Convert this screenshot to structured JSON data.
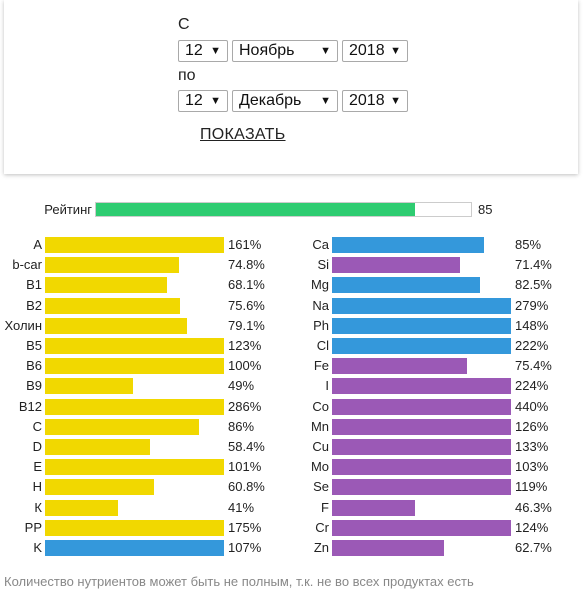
{
  "filter": {
    "from_label": "С",
    "to_label": "по",
    "from": {
      "day": "12",
      "month": "Ноябрь",
      "year": "2018"
    },
    "to": {
      "day": "12",
      "month": "Декабрь",
      "year": "2018"
    },
    "show_label": "ПОКАЗАТЬ",
    "dropdown_arrow": "▼"
  },
  "rating": {
    "label": "Рейтинг",
    "value": 85,
    "value_text": "85",
    "color": "#2ecc71"
  },
  "colors": {
    "vitamin": "#f1d800",
    "blue": "#3498db",
    "purple": "#9b59b6"
  },
  "vitamins": [
    {
      "name": "A",
      "pct": "161%",
      "value": 161,
      "color": "vitamin"
    },
    {
      "name": "b-car",
      "pct": "74.8%",
      "value": 74.8,
      "color": "vitamin"
    },
    {
      "name": "B1",
      "pct": "68.1%",
      "value": 68.1,
      "color": "vitamin"
    },
    {
      "name": "B2",
      "pct": "75.6%",
      "value": 75.6,
      "color": "vitamin"
    },
    {
      "name": "Холин",
      "pct": "79.1%",
      "value": 79.1,
      "color": "vitamin"
    },
    {
      "name": "B5",
      "pct": "123%",
      "value": 123,
      "color": "vitamin"
    },
    {
      "name": "B6",
      "pct": "100%",
      "value": 100,
      "color": "vitamin"
    },
    {
      "name": "B9",
      "pct": "49%",
      "value": 49,
      "color": "vitamin"
    },
    {
      "name": "B12",
      "pct": "286%",
      "value": 286,
      "color": "vitamin"
    },
    {
      "name": "C",
      "pct": "86%",
      "value": 86,
      "color": "vitamin"
    },
    {
      "name": "D",
      "pct": "58.4%",
      "value": 58.4,
      "color": "vitamin"
    },
    {
      "name": "E",
      "pct": "101%",
      "value": 101,
      "color": "vitamin"
    },
    {
      "name": "H",
      "pct": "60.8%",
      "value": 60.8,
      "color": "vitamin"
    },
    {
      "name": "К",
      "pct": "41%",
      "value": 41,
      "color": "vitamin"
    },
    {
      "name": "PP",
      "pct": "175%",
      "value": 175,
      "color": "vitamin"
    },
    {
      "name": "K",
      "pct": "107%",
      "value": 107,
      "color": "blue"
    }
  ],
  "minerals": [
    {
      "name": "Ca",
      "pct": "85%",
      "value": 85,
      "color": "blue"
    },
    {
      "name": "Si",
      "pct": "71.4%",
      "value": 71.4,
      "color": "purple"
    },
    {
      "name": "Mg",
      "pct": "82.5%",
      "value": 82.5,
      "color": "blue"
    },
    {
      "name": "Na",
      "pct": "279%",
      "value": 279,
      "color": "blue"
    },
    {
      "name": "Ph",
      "pct": "148%",
      "value": 148,
      "color": "blue"
    },
    {
      "name": "Cl",
      "pct": "222%",
      "value": 222,
      "color": "blue"
    },
    {
      "name": "Fe",
      "pct": "75.4%",
      "value": 75.4,
      "color": "purple"
    },
    {
      "name": "I",
      "pct": "224%",
      "value": 224,
      "color": "purple"
    },
    {
      "name": "Co",
      "pct": "440%",
      "value": 440,
      "color": "purple"
    },
    {
      "name": "Mn",
      "pct": "126%",
      "value": 126,
      "color": "purple"
    },
    {
      "name": "Cu",
      "pct": "133%",
      "value": 133,
      "color": "purple"
    },
    {
      "name": "Mo",
      "pct": "103%",
      "value": 103,
      "color": "purple"
    },
    {
      "name": "Se",
      "pct": "119%",
      "value": 119,
      "color": "purple"
    },
    {
      "name": "F",
      "pct": "46.3%",
      "value": 46.3,
      "color": "purple"
    },
    {
      "name": "Cr",
      "pct": "124%",
      "value": 124,
      "color": "purple"
    },
    {
      "name": "Zn",
      "pct": "62.7%",
      "value": 62.7,
      "color": "purple"
    }
  ],
  "footnote": "Количество нутриентов может быть не полным, т.к. не во всех продуктах есть"
}
